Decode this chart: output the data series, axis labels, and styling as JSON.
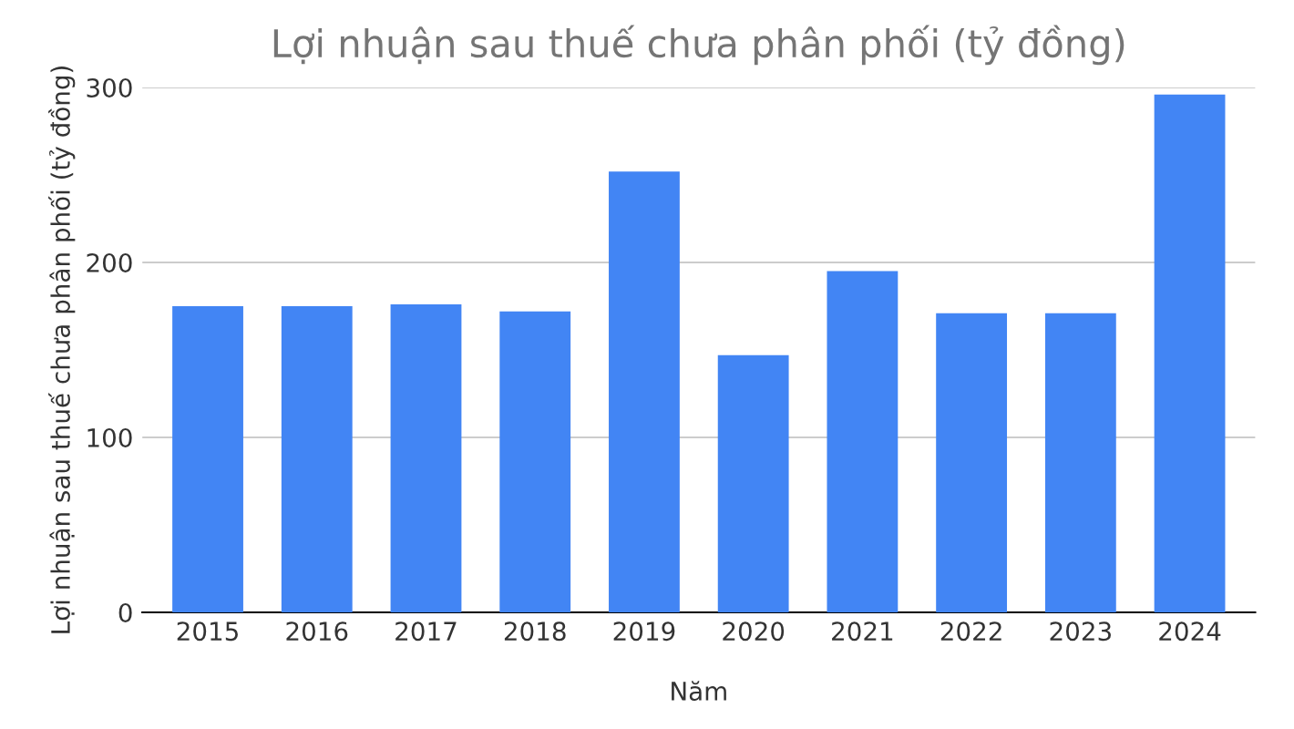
{
  "chart_data": {
    "type": "bar",
    "title": "Lợi nhuận sau thuế chưa phân phối (tỷ đồng)",
    "xlabel": "Năm",
    "ylabel": "Lợi nhuận sau thuế chưa phân phối (tỷ đồng)",
    "categories": [
      "2015",
      "2016",
      "2017",
      "2018",
      "2019",
      "2020",
      "2021",
      "2022",
      "2023",
      "2024"
    ],
    "values": [
      175,
      175,
      176,
      172,
      252,
      147,
      195,
      171,
      171,
      296
    ],
    "color": "#4285f4",
    "ylim": [
      0,
      300
    ],
    "yticks": [
      0,
      100,
      200,
      300
    ],
    "grid": "y"
  }
}
